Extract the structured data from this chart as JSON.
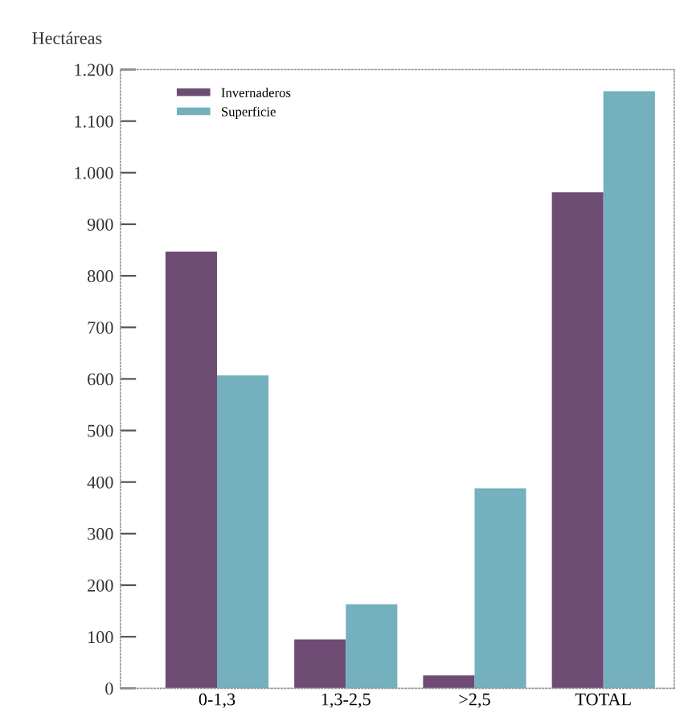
{
  "chart_data": {
    "type": "bar",
    "ylabel": "Hectáreas",
    "categories": [
      "0-1,3",
      "1,3-2,5",
      ">2,5",
      "TOTAL"
    ],
    "series": [
      {
        "name": "Invernaderos",
        "color": "#6e4c74",
        "values": [
          847,
          95,
          25,
          962
        ]
      },
      {
        "name": "Superficie",
        "color": "#74b0be",
        "values": [
          607,
          163,
          388,
          1158
        ]
      }
    ],
    "ylim": [
      0,
      1200
    ],
    "yticks": [
      {
        "value": 0,
        "label": "0"
      },
      {
        "value": 100,
        "label": "100"
      },
      {
        "value": 200,
        "label": "200"
      },
      {
        "value": 300,
        "label": "300"
      },
      {
        "value": 400,
        "label": "400"
      },
      {
        "value": 500,
        "label": "500"
      },
      {
        "value": 600,
        "label": "600"
      },
      {
        "value": 700,
        "label": "700"
      },
      {
        "value": 800,
        "label": "800"
      },
      {
        "value": 900,
        "label": "900"
      },
      {
        "value": 1000,
        "label": "1.000"
      },
      {
        "value": 1100,
        "label": "1.100"
      },
      {
        "value": 1200,
        "label": "1.200"
      }
    ],
    "grid": false,
    "legend": "top left"
  }
}
